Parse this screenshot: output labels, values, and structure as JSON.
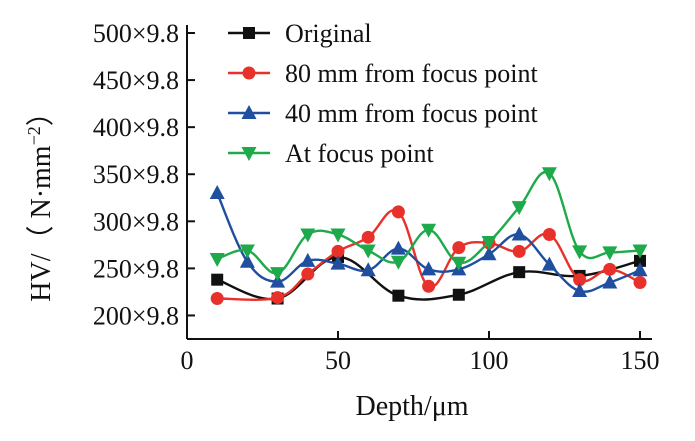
{
  "chart_data": {
    "type": "line",
    "title": "",
    "xlabel": "Depth/μm",
    "ylabel_parts": [
      "HV/（ N·mm",
      "−2",
      "）"
    ],
    "xlim": [
      0,
      150
    ],
    "ylim": [
      175,
      500
    ],
    "x_ticks": [
      0,
      50,
      100,
      150
    ],
    "x_tick_labels": [
      "0",
      "50",
      "100",
      "150"
    ],
    "y_ticks": [
      200,
      250,
      300,
      350,
      400,
      450,
      500
    ],
    "y_tick_labels": [
      "200×9.8",
      "250×9.8",
      "300×9.8",
      "350×9.8",
      "400×9.8",
      "450×9.8",
      "500×9.8"
    ],
    "grid": false,
    "legend_position": "top-left",
    "series": [
      {
        "name": "Original",
        "color": "#111111",
        "marker": "square",
        "x": [
          10,
          30,
          50,
          70,
          90,
          110,
          130,
          150
        ],
        "y": [
          238,
          218,
          262,
          221,
          222,
          246,
          242,
          258
        ]
      },
      {
        "name": "80 mm from focus point",
        "color": "#e8312a",
        "marker": "circle",
        "x": [
          10,
          30,
          40,
          50,
          60,
          70,
          80,
          90,
          100,
          110,
          120,
          130,
          140,
          150
        ],
        "y": [
          218,
          219,
          244,
          268,
          283,
          310,
          231,
          272,
          277,
          268,
          286,
          238,
          249,
          235
        ]
      },
      {
        "name": "40 mm from focus point",
        "color": "#1f4f9e",
        "marker": "triangle-up",
        "x": [
          10,
          20,
          30,
          40,
          50,
          60,
          70,
          80,
          90,
          100,
          110,
          120,
          130,
          140,
          150
        ],
        "y": [
          330,
          257,
          236,
          258,
          255,
          248,
          271,
          249,
          249,
          265,
          286,
          254,
          226,
          235,
          248
        ]
      },
      {
        "name": "At focus point",
        "color": "#1eaa4a",
        "marker": "triangle-down",
        "x": [
          10,
          20,
          30,
          40,
          50,
          60,
          70,
          80,
          90,
          100,
          110,
          120,
          130,
          140,
          150
        ],
        "y": [
          260,
          269,
          245,
          286,
          286,
          269,
          257,
          291,
          256,
          278,
          315,
          351,
          268,
          267,
          269
        ]
      }
    ]
  }
}
